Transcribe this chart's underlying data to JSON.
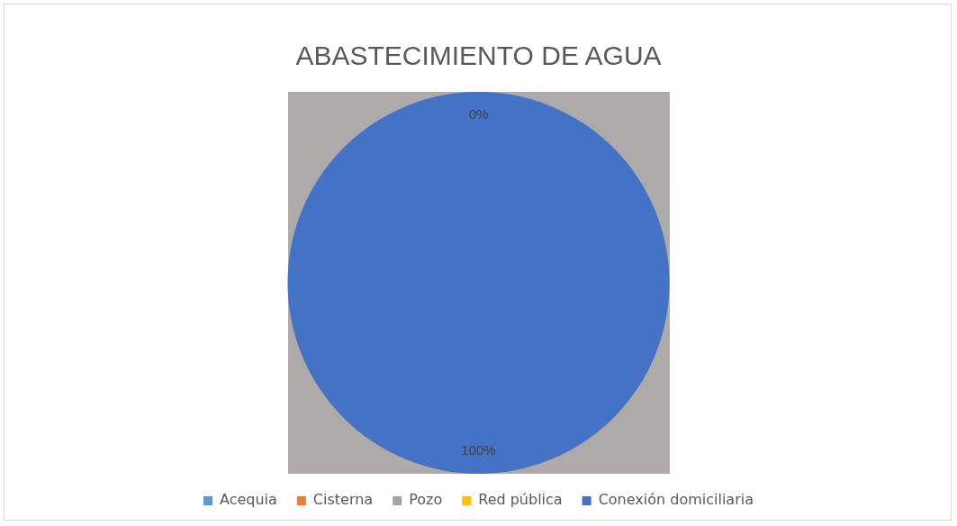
{
  "chart_data": {
    "type": "pie",
    "title": "ABASTECIMIENTO DE AGUA",
    "categories": [
      "Acequia",
      "Cisterna",
      "Pozo",
      "Red pública",
      "Conexión domiciliaria"
    ],
    "values": [
      0,
      0,
      0,
      0,
      100
    ],
    "colors": [
      "#5b9bd5",
      "#ed7d31",
      "#a5a5a5",
      "#ffc000",
      "#4472c4"
    ],
    "value_labels": [
      "0%",
      null,
      null,
      null,
      "100%"
    ],
    "legend": "bottom"
  }
}
